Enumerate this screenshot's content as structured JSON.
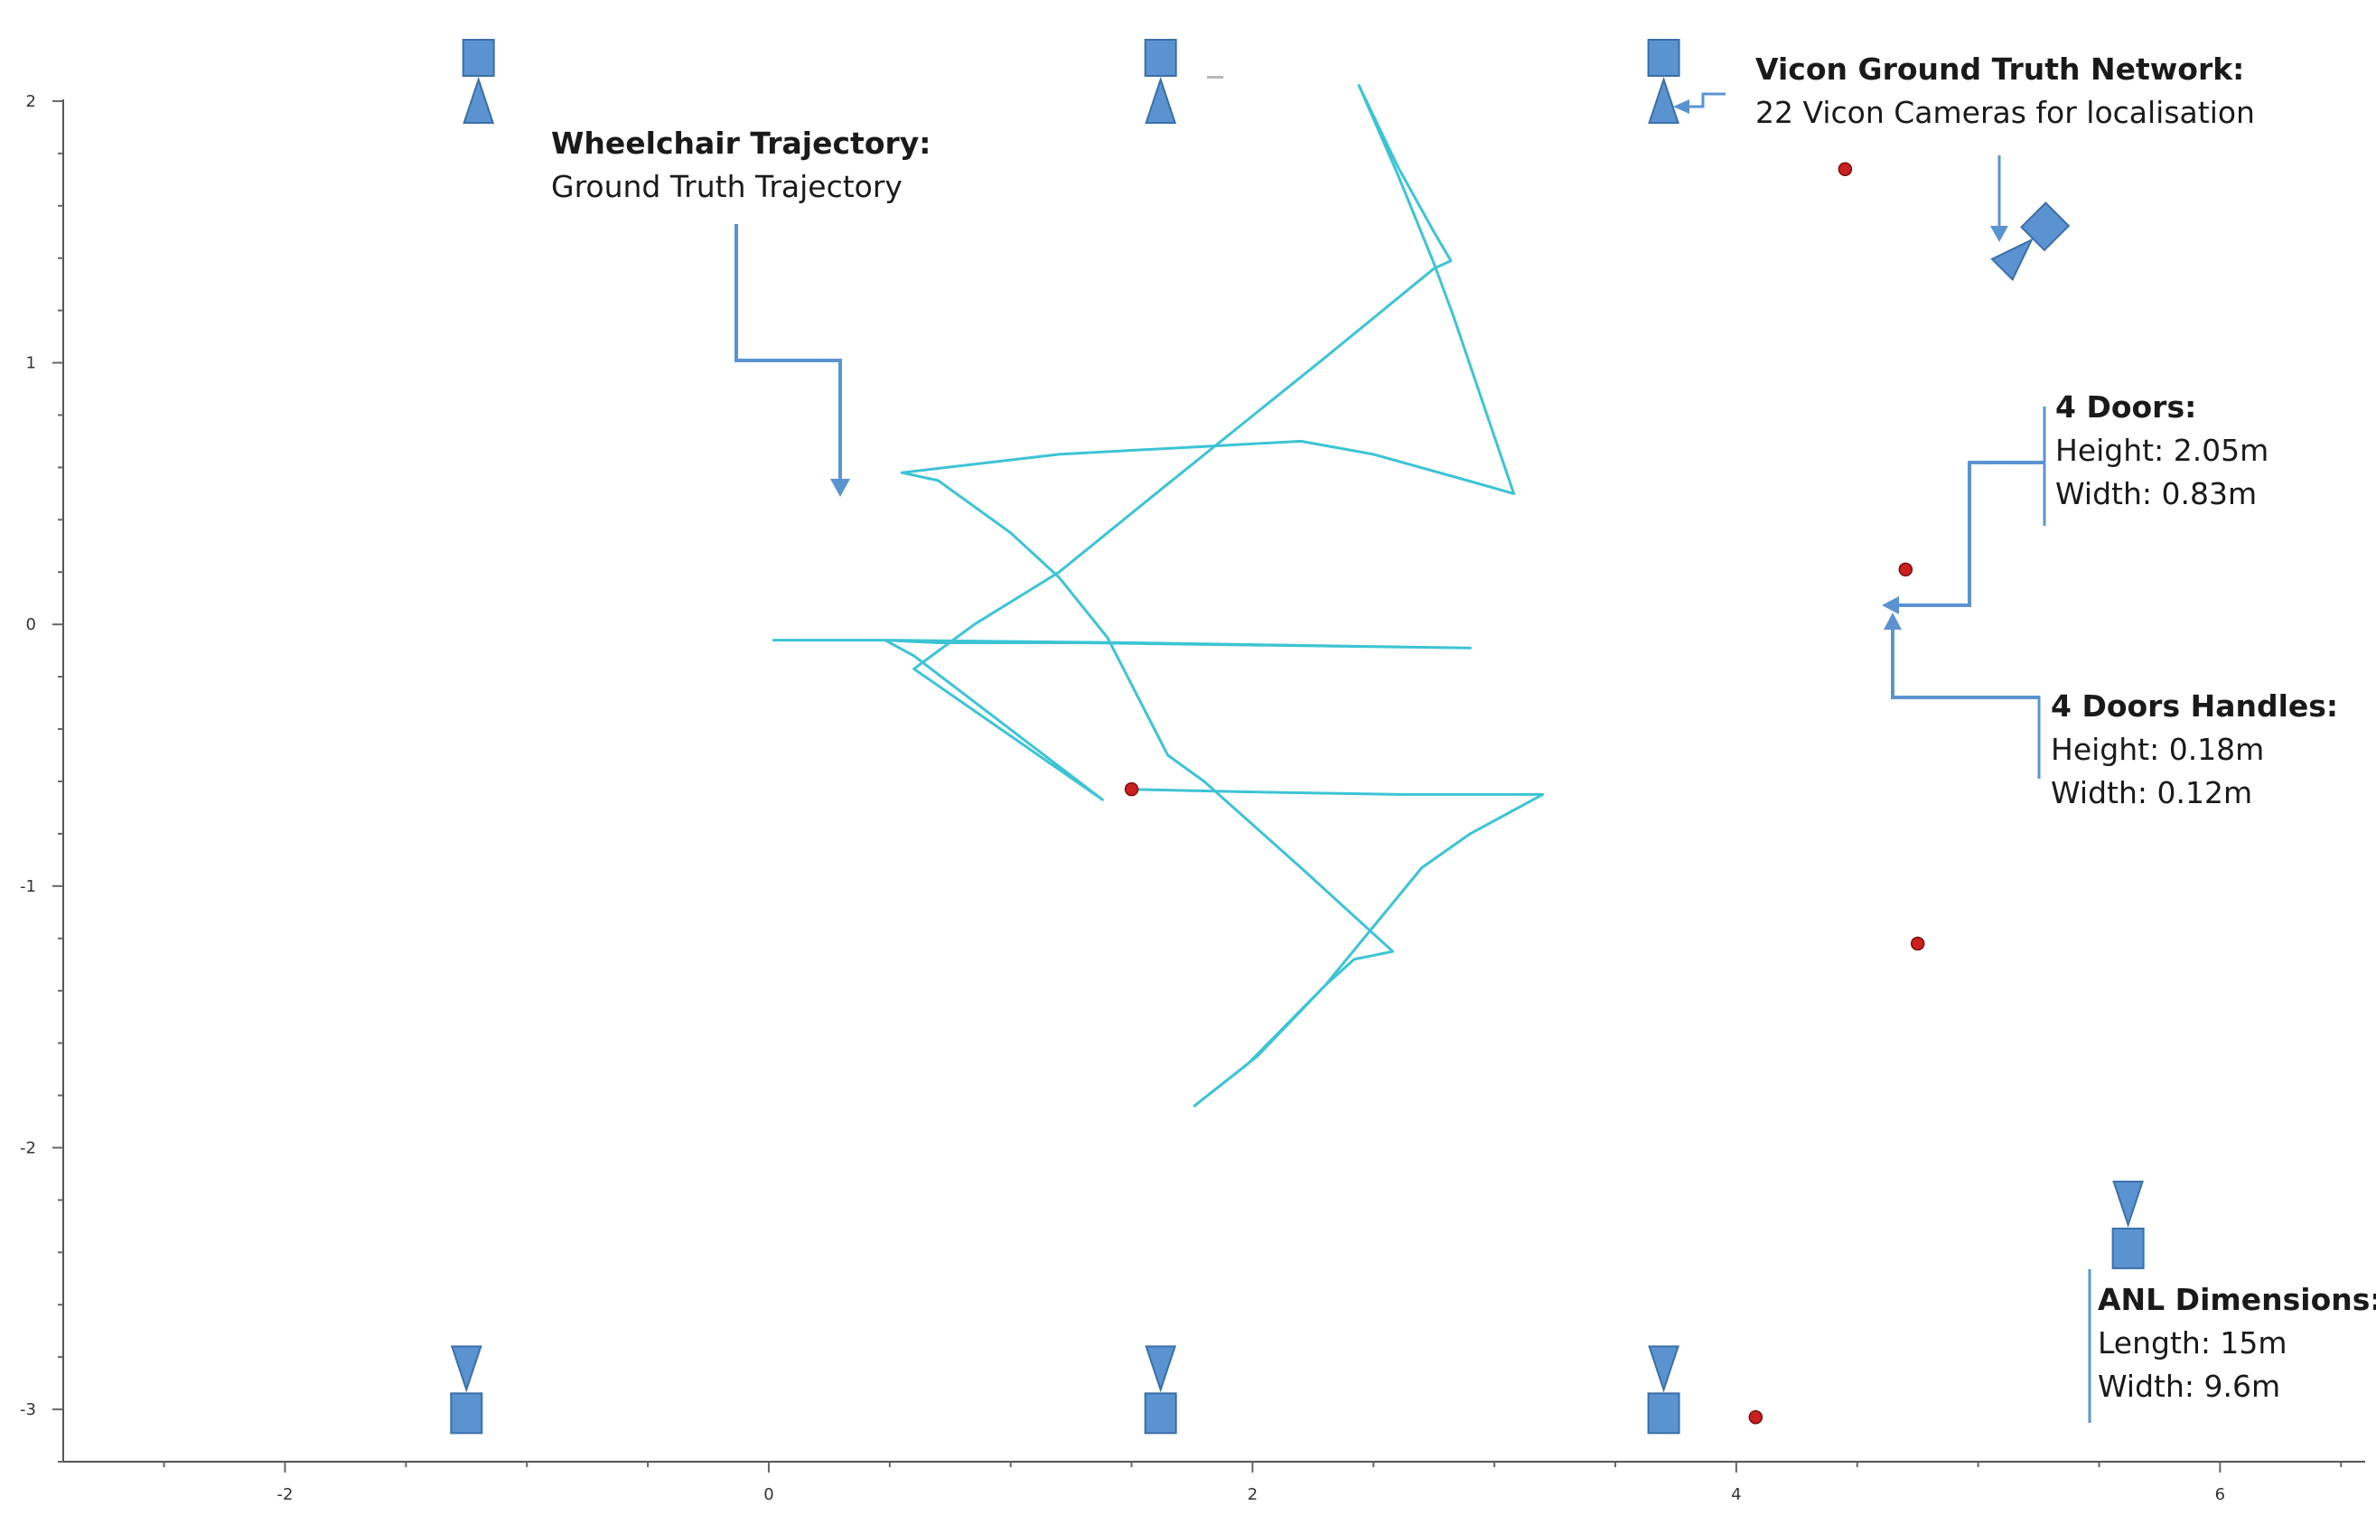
{
  "chart_data": {
    "type": "line",
    "title": "",
    "xlabel": "",
    "ylabel": "",
    "xlim": [
      -2.45,
      6.6
    ],
    "ylim": [
      -3.2,
      2.2
    ],
    "x_ticks": [
      "-2",
      "0",
      "2",
      "4",
      "6"
    ],
    "y_ticks": [
      "2",
      "1",
      "0",
      "-1",
      "-2",
      "-3"
    ],
    "grid": false,
    "series": [
      {
        "name": "",
        "color": "#3cc4d4",
        "points": [
          [
            0.02,
            -0.06
          ],
          [
            0.5,
            -0.06
          ],
          [
            1.5,
            -0.07
          ],
          [
            2.9,
            -0.09
          ],
          [
            2.9,
            -0.09
          ],
          [
            1.3,
            -0.07
          ],
          [
            0.7,
            -0.07
          ],
          [
            0.48,
            -0.06
          ],
          [
            0.6,
            -0.12
          ],
          [
            1.38,
            -0.67
          ],
          [
            0.6,
            -0.17
          ],
          [
            0.85,
            0.0
          ],
          [
            1.2,
            0.2
          ],
          [
            1.6,
            0.5
          ],
          [
            2.3,
            1.02
          ],
          [
            2.75,
            1.36
          ],
          [
            2.82,
            1.39
          ],
          [
            2.75,
            1.5
          ],
          [
            2.6,
            1.75
          ],
          [
            2.44,
            2.06
          ],
          [
            2.6,
            1.72
          ],
          [
            2.75,
            1.38
          ],
          [
            2.83,
            1.18
          ],
          [
            3.08,
            0.5
          ],
          [
            2.85,
            0.56
          ],
          [
            2.5,
            0.65
          ],
          [
            2.2,
            0.7
          ],
          [
            1.8,
            0.68
          ],
          [
            1.2,
            0.65
          ],
          [
            0.55,
            0.58
          ],
          [
            0.7,
            0.55
          ],
          [
            1.0,
            0.35
          ],
          [
            1.2,
            0.18
          ],
          [
            1.4,
            -0.05
          ],
          [
            1.65,
            -0.5
          ],
          [
            1.8,
            -0.6
          ],
          [
            2.2,
            -0.93
          ],
          [
            2.58,
            -1.25
          ],
          [
            2.42,
            -1.28
          ],
          [
            2.3,
            -1.38
          ],
          [
            1.98,
            -1.68
          ],
          [
            1.76,
            -1.84
          ],
          [
            2.02,
            -1.65
          ],
          [
            2.3,
            -1.38
          ],
          [
            2.7,
            -0.93
          ],
          [
            2.9,
            -0.8
          ],
          [
            3.2,
            -0.65
          ],
          [
            2.6,
            -0.65
          ],
          [
            1.97,
            -0.64
          ],
          [
            1.5,
            -0.63
          ]
        ]
      }
    ],
    "markers": {
      "color": "#cc1f1f",
      "points": [
        [
          4.45,
          1.74
        ],
        [
          4.7,
          0.21
        ],
        [
          1.5,
          -0.63
        ],
        [
          4.75,
          -1.22
        ],
        [
          4.08,
          -3.03
        ]
      ]
    },
    "camera_icons": {
      "color": "#5b93d1",
      "items": [
        {
          "x": -1.2,
          "y": 2.2,
          "facing": "down"
        },
        {
          "x": 1.62,
          "y": 2.2,
          "facing": "down"
        },
        {
          "x": 3.7,
          "y": 2.2,
          "facing": "down"
        },
        {
          "x": -1.25,
          "y": -2.78,
          "facing": "up"
        },
        {
          "x": 1.62,
          "y": -2.78,
          "facing": "up"
        },
        {
          "x": 3.7,
          "y": -2.78,
          "facing": "up"
        },
        {
          "x": 5.62,
          "y": -2.15,
          "facing": "up"
        },
        {
          "x": 5.2,
          "y": 1.45,
          "facing": "diagonal"
        }
      ]
    },
    "annotations": {
      "color": "#5b93d1",
      "wheelchair": {
        "title": "Wheelchair Trajectory:",
        "lines": [
          "Ground Truth Trajectory"
        ]
      },
      "vicon": {
        "title": "Vicon Ground Truth Network:",
        "lines": [
          "22 Vicon Cameras for localisation"
        ]
      },
      "doors": {
        "title": "4 Doors:",
        "lines": [
          "Height: 2.05m",
          "Width: 0.83m"
        ]
      },
      "handles": {
        "title": "4 Doors Handles:",
        "lines": [
          "Height: 0.18m",
          "Width: 0.12m"
        ]
      },
      "anl": {
        "title": "ANL Dimensions:",
        "lines": [
          "Length: 15m",
          "Width: 9.6m"
        ]
      }
    }
  }
}
